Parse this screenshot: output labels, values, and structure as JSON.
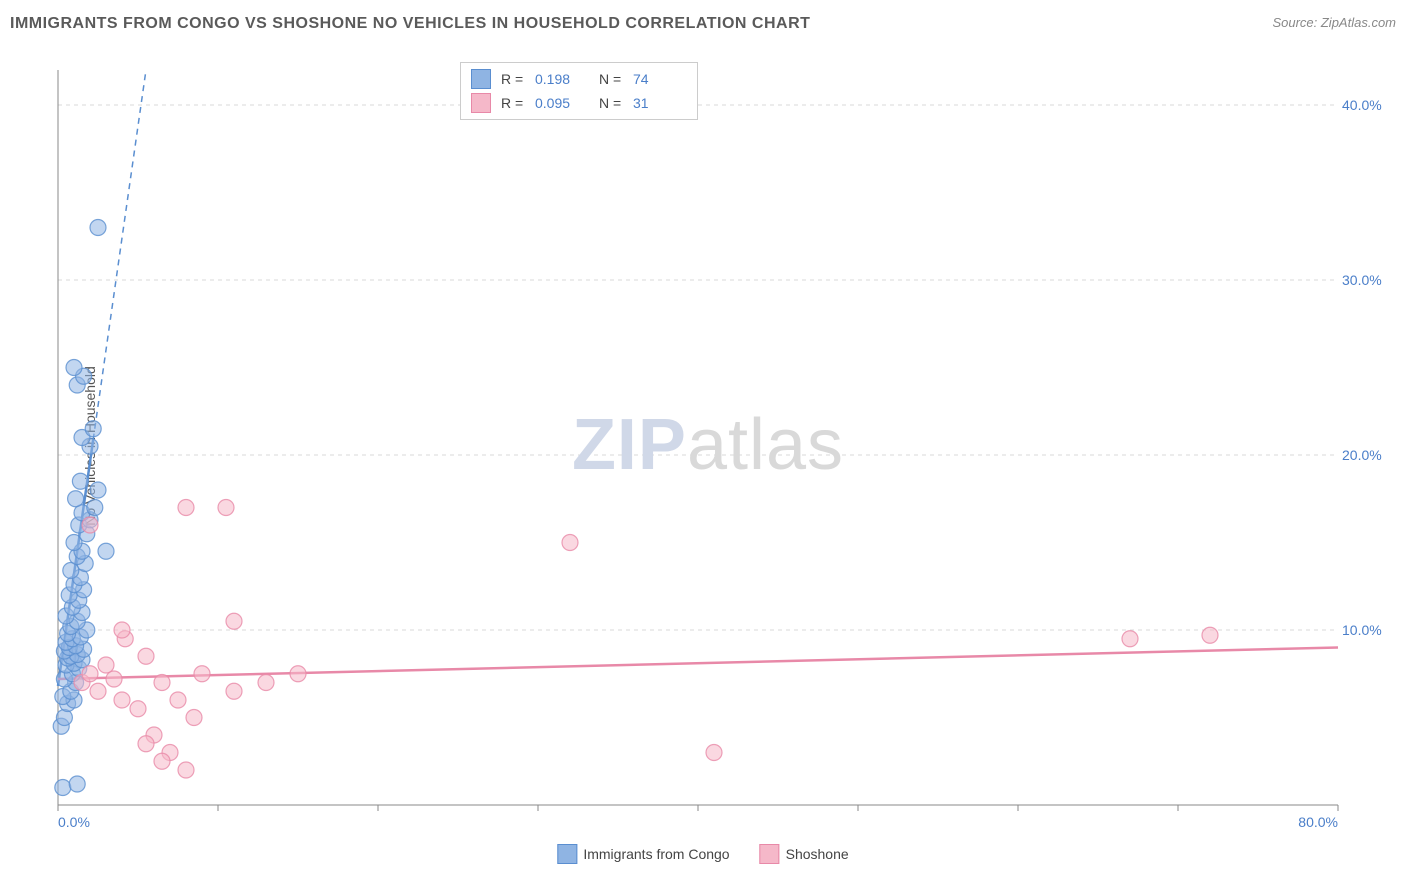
{
  "title": "IMMIGRANTS FROM CONGO VS SHOSHONE NO VEHICLES IN HOUSEHOLD CORRELATION CHART",
  "source": "Source: ZipAtlas.com",
  "ylabel": "No Vehicles in Household",
  "watermark_zip": "ZIP",
  "watermark_atlas": "atlas",
  "chart": {
    "type": "scatter",
    "background_color": "#ffffff",
    "grid_color": "#d9d9d9",
    "xlim": [
      0,
      80
    ],
    "ylim": [
      0,
      42
    ],
    "xticks": [
      0,
      10,
      20,
      30,
      40,
      50,
      60,
      70,
      80
    ],
    "yticks": [
      10,
      20,
      30,
      40
    ],
    "xtick_labels": [
      "0.0%",
      "",
      "",
      "",
      "",
      "",
      "",
      "",
      "80.0%"
    ],
    "ytick_labels": [
      "10.0%",
      "20.0%",
      "30.0%",
      "40.0%"
    ],
    "tick_label_color": "#4a7ec9",
    "tick_label_fontsize": 14,
    "marker_radius": 8,
    "marker_opacity": 0.55,
    "series": [
      {
        "name": "Immigrants from Congo",
        "color": "#8fb4e3",
        "stroke": "#5a8ed0",
        "R": "0.198",
        "N": "74",
        "regression": {
          "x1": 0,
          "y1": 6.8,
          "x2": 5.5,
          "y2": 42,
          "dashed_after_x": 2.2
        },
        "points": [
          [
            0.3,
            1.0
          ],
          [
            1.2,
            1.2
          ],
          [
            0.2,
            4.5
          ],
          [
            0.4,
            5.0
          ],
          [
            0.6,
            5.8
          ],
          [
            1.0,
            6.0
          ],
          [
            0.3,
            6.2
          ],
          [
            0.8,
            6.5
          ],
          [
            1.1,
            7.0
          ],
          [
            0.4,
            7.2
          ],
          [
            0.9,
            7.5
          ],
          [
            1.3,
            7.8
          ],
          [
            0.5,
            8.0
          ],
          [
            1.0,
            8.1
          ],
          [
            1.5,
            8.3
          ],
          [
            0.6,
            8.4
          ],
          [
            0.8,
            8.5
          ],
          [
            1.2,
            8.6
          ],
          [
            0.4,
            8.8
          ],
          [
            1.6,
            8.9
          ],
          [
            0.7,
            9.0
          ],
          [
            1.1,
            9.1
          ],
          [
            0.5,
            9.3
          ],
          [
            0.9,
            9.5
          ],
          [
            1.4,
            9.6
          ],
          [
            0.6,
            9.8
          ],
          [
            1.8,
            10.0
          ],
          [
            0.8,
            10.2
          ],
          [
            1.2,
            10.5
          ],
          [
            0.5,
            10.8
          ],
          [
            1.5,
            11.0
          ],
          [
            0.9,
            11.3
          ],
          [
            1.3,
            11.7
          ],
          [
            0.7,
            12.0
          ],
          [
            1.6,
            12.3
          ],
          [
            1.0,
            12.6
          ],
          [
            1.4,
            13.0
          ],
          [
            0.8,
            13.4
          ],
          [
            1.7,
            13.8
          ],
          [
            1.2,
            14.2
          ],
          [
            1.5,
            14.5
          ],
          [
            3.0,
            14.5
          ],
          [
            1.0,
            15.0
          ],
          [
            1.8,
            15.5
          ],
          [
            1.3,
            16.0
          ],
          [
            2.0,
            16.3
          ],
          [
            1.5,
            16.7
          ],
          [
            2.3,
            17.0
          ],
          [
            1.1,
            17.5
          ],
          [
            2.5,
            18.0
          ],
          [
            1.4,
            18.5
          ],
          [
            2.0,
            20.5
          ],
          [
            1.5,
            21.0
          ],
          [
            2.2,
            21.5
          ],
          [
            1.2,
            24.0
          ],
          [
            1.6,
            24.5
          ],
          [
            1.0,
            25.0
          ],
          [
            2.5,
            33.0
          ]
        ]
      },
      {
        "name": "Shoshone",
        "color": "#f5b8c9",
        "stroke": "#e889a8",
        "R": "0.095",
        "N": "31",
        "regression": {
          "x1": 0,
          "y1": 7.2,
          "x2": 80,
          "y2": 9.0,
          "dashed_after_x": 80
        },
        "points": [
          [
            1.5,
            7.0
          ],
          [
            2.0,
            7.5
          ],
          [
            2.5,
            6.5
          ],
          [
            3.0,
            8.0
          ],
          [
            3.5,
            7.2
          ],
          [
            4.0,
            6.0
          ],
          [
            4.2,
            9.5
          ],
          [
            5.0,
            5.5
          ],
          [
            5.5,
            8.5
          ],
          [
            6.0,
            4.0
          ],
          [
            6.5,
            7.0
          ],
          [
            7.0,
            3.0
          ],
          [
            7.5,
            6.0
          ],
          [
            8.0,
            2.0
          ],
          [
            8.5,
            5.0
          ],
          [
            9.0,
            7.5
          ],
          [
            10.5,
            17.0
          ],
          [
            11.0,
            6.5
          ],
          [
            13.0,
            7.0
          ],
          [
            8.0,
            17.0
          ],
          [
            11.0,
            10.5
          ],
          [
            15.0,
            7.5
          ],
          [
            32.0,
            15.0
          ],
          [
            2.0,
            16.0
          ],
          [
            4.0,
            10.0
          ],
          [
            67.0,
            9.5
          ],
          [
            72.0,
            9.7
          ],
          [
            5.5,
            3.5
          ],
          [
            6.5,
            2.5
          ],
          [
            41.0,
            3.0
          ]
        ]
      }
    ]
  },
  "stats_legend": {
    "r_label": "R  =",
    "n_label": "N  ="
  },
  "bottom_legend": {
    "series1": "Immigrants from Congo",
    "series2": "Shoshone"
  }
}
